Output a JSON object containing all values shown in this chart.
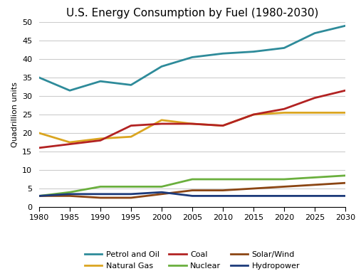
{
  "title": "U.S. Energy Consumption by Fuel (1980-2030)",
  "ylabel": "Quadrillion units",
  "years": [
    1980,
    1985,
    1990,
    1995,
    2000,
    2005,
    2010,
    2015,
    2020,
    2025,
    2030
  ],
  "series": [
    {
      "name": "Petrol and Oil",
      "values": [
        35.0,
        31.5,
        34.0,
        33.0,
        38.0,
        40.5,
        41.5,
        42.0,
        43.0,
        47.0,
        49.0
      ],
      "color": "#2E8B9A"
    },
    {
      "name": "Natural Gas",
      "values": [
        20.0,
        17.5,
        18.5,
        19.0,
        23.5,
        22.5,
        22.0,
        25.0,
        25.5,
        25.5,
        25.5
      ],
      "color": "#DAA520"
    },
    {
      "name": "Coal",
      "values": [
        16.0,
        17.0,
        18.0,
        22.0,
        22.5,
        22.5,
        22.0,
        25.0,
        26.5,
        29.5,
        31.5
      ],
      "color": "#B22222"
    },
    {
      "name": "Nuclear",
      "values": [
        3.0,
        4.0,
        5.5,
        5.5,
        5.5,
        7.5,
        7.5,
        7.5,
        7.5,
        8.0,
        8.5
      ],
      "color": "#6AAF3D"
    },
    {
      "name": "Solar/Wind",
      "values": [
        3.0,
        3.0,
        2.5,
        2.5,
        3.5,
        4.5,
        4.5,
        5.0,
        5.5,
        6.0,
        6.5
      ],
      "color": "#8B4513"
    },
    {
      "name": "Hydropower",
      "values": [
        3.0,
        3.5,
        3.5,
        3.5,
        4.0,
        3.0,
        3.0,
        3.0,
        3.0,
        3.0,
        3.0
      ],
      "color": "#1C3A7A"
    }
  ],
  "xlim": [
    1980,
    2030
  ],
  "ylim": [
    0,
    50
  ],
  "yticks": [
    0,
    5,
    10,
    15,
    20,
    25,
    30,
    35,
    40,
    45,
    50
  ],
  "xticks": [
    1980,
    1985,
    1990,
    1995,
    2000,
    2005,
    2010,
    2015,
    2020,
    2025,
    2030
  ],
  "background_color": "#FFFFFF",
  "grid_color": "#CCCCCC",
  "title_fontsize": 11,
  "axis_label_fontsize": 8,
  "tick_fontsize": 8,
  "legend_fontsize": 8,
  "linewidth": 2.0
}
